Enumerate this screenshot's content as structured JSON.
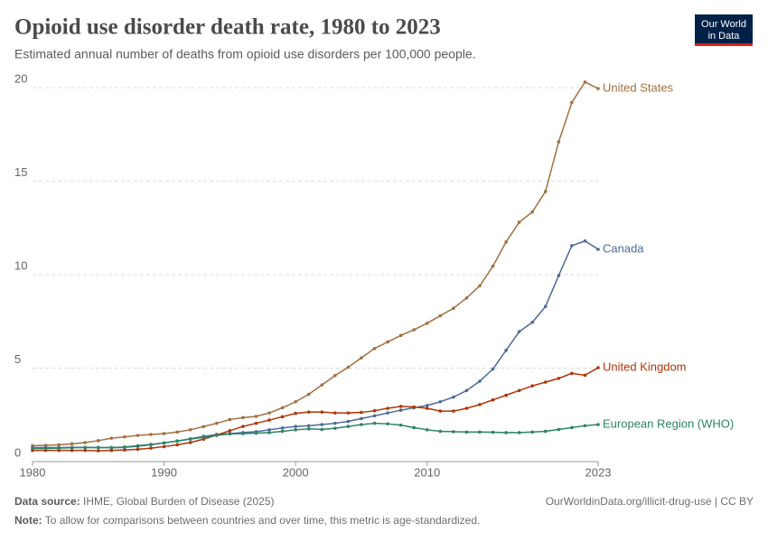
{
  "chart_data": {
    "type": "line",
    "title": "Opioid use disorder death rate, 1980 to 2023",
    "subtitle": "Estimated annual number of deaths from opioid use disorders per 100,000 people.",
    "logo": [
      "Our World",
      "in Data"
    ],
    "source_label": "Data source:",
    "source": "IHME, Global Burden of Disease (2025)",
    "url": "OurWorldinData.org/illicit-drug-use | CC BY",
    "note_label": "Note:",
    "note": "To allow for comparisons between countries and over time, this metric is age-standardized.",
    "x": [
      1980,
      1981,
      1982,
      1983,
      1984,
      1985,
      1986,
      1987,
      1988,
      1989,
      1990,
      1991,
      1992,
      1993,
      1994,
      1995,
      1996,
      1997,
      1998,
      1999,
      2000,
      2001,
      2002,
      2003,
      2004,
      2005,
      2006,
      2007,
      2008,
      2009,
      2010,
      2011,
      2012,
      2013,
      2014,
      2015,
      2016,
      2017,
      2018,
      2019,
      2020,
      2021,
      2022,
      2023
    ],
    "xlim": [
      1980,
      2023
    ],
    "xticks": [
      1980,
      1990,
      2000,
      2010,
      2023
    ],
    "ylim": [
      0,
      20
    ],
    "yticks": [
      0,
      5,
      10,
      15,
      20
    ],
    "grid": true,
    "series": [
      {
        "name": "United States",
        "color": "#a2703f",
        "values": [
          0.85,
          0.87,
          0.9,
          0.95,
          1.02,
          1.12,
          1.25,
          1.32,
          1.4,
          1.45,
          1.5,
          1.58,
          1.7,
          1.87,
          2.05,
          2.25,
          2.35,
          2.42,
          2.6,
          2.88,
          3.2,
          3.6,
          4.1,
          4.6,
          5.05,
          5.55,
          6.05,
          6.4,
          6.75,
          7.05,
          7.4,
          7.8,
          8.2,
          8.75,
          9.4,
          10.45,
          11.75,
          12.8,
          13.35,
          14.45,
          17.1,
          19.2,
          20.3,
          19.95
        ]
      },
      {
        "name": "Canada",
        "color": "#4c6a9c",
        "values": [
          0.75,
          0.75,
          0.75,
          0.76,
          0.76,
          0.75,
          0.74,
          0.76,
          0.82,
          0.9,
          1.0,
          1.1,
          1.22,
          1.35,
          1.45,
          1.5,
          1.55,
          1.6,
          1.7,
          1.8,
          1.88,
          1.92,
          1.98,
          2.05,
          2.15,
          2.3,
          2.45,
          2.6,
          2.75,
          2.88,
          3.0,
          3.2,
          3.45,
          3.8,
          4.3,
          4.95,
          5.95,
          6.95,
          7.45,
          8.3,
          9.95,
          11.55,
          11.8,
          11.35
        ]
      },
      {
        "name": "United Kingdom",
        "color": "#b13507",
        "values": [
          0.6,
          0.6,
          0.6,
          0.6,
          0.6,
          0.58,
          0.6,
          0.62,
          0.66,
          0.72,
          0.8,
          0.9,
          1.02,
          1.2,
          1.42,
          1.65,
          1.88,
          2.05,
          2.22,
          2.4,
          2.58,
          2.65,
          2.65,
          2.6,
          2.6,
          2.63,
          2.72,
          2.85,
          2.95,
          2.92,
          2.85,
          2.7,
          2.7,
          2.85,
          3.05,
          3.3,
          3.55,
          3.8,
          4.05,
          4.25,
          4.45,
          4.72,
          4.62,
          5.02
        ]
      },
      {
        "name": "European Region (WHO)",
        "color": "#2c8465",
        "values": [
          0.7,
          0.7,
          0.72,
          0.74,
          0.75,
          0.75,
          0.75,
          0.78,
          0.85,
          0.92,
          1.0,
          1.1,
          1.2,
          1.3,
          1.4,
          1.48,
          1.5,
          1.52,
          1.55,
          1.62,
          1.7,
          1.75,
          1.72,
          1.78,
          1.88,
          1.98,
          2.05,
          2.02,
          1.95,
          1.82,
          1.7,
          1.62,
          1.6,
          1.58,
          1.58,
          1.57,
          1.55,
          1.55,
          1.58,
          1.62,
          1.72,
          1.82,
          1.92,
          1.98
        ]
      }
    ]
  }
}
